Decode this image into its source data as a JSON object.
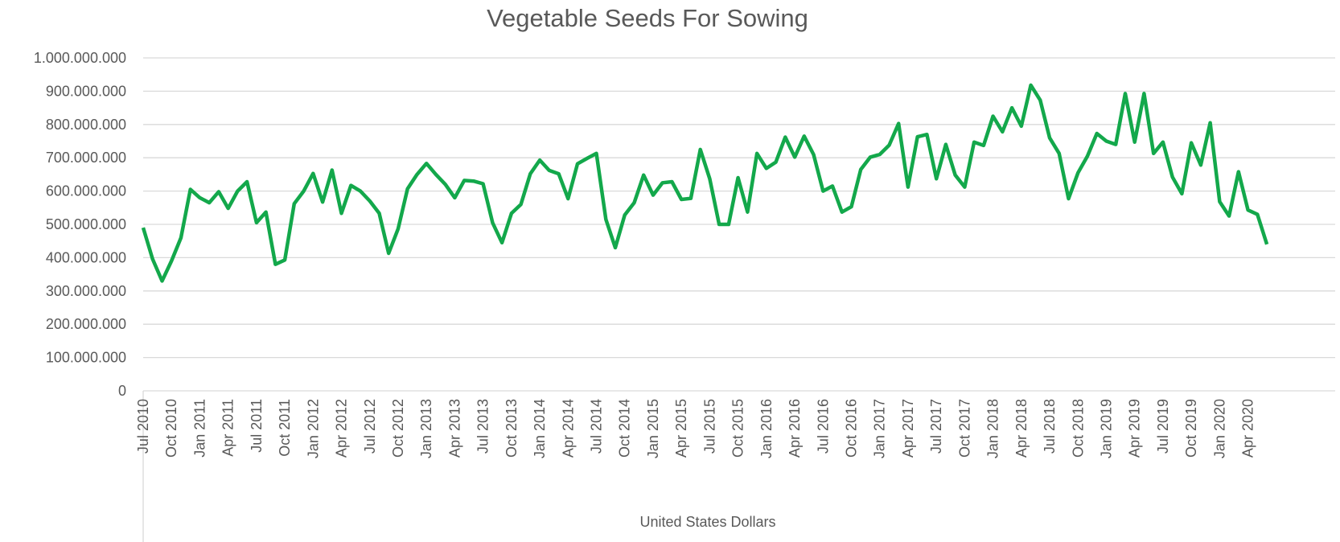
{
  "chart_data": {
    "type": "line",
    "title": "Vegetable Seeds For Sowing",
    "x_label": "United States Dollars",
    "categories": [
      "Jul 2010",
      null,
      null,
      "Oct 2010",
      null,
      null,
      "Jan 2011",
      null,
      null,
      "Apr 2011",
      null,
      null,
      "Jul 2011",
      null,
      null,
      "Oct 2011",
      null,
      null,
      "Jan 2012",
      null,
      null,
      "Apr 2012",
      null,
      null,
      "Jul 2012",
      null,
      null,
      "Oct 2012",
      null,
      null,
      "Jan 2013",
      null,
      null,
      "Apr 2013",
      null,
      null,
      "Jul 2013",
      null,
      null,
      "Oct 2013",
      null,
      null,
      "Jan 2014",
      null,
      null,
      "Apr 2014",
      null,
      null,
      "Jul 2014",
      null,
      null,
      "Oct 2014",
      null,
      null,
      "Jan 2015",
      null,
      null,
      "Apr 2015",
      null,
      null,
      "Jul 2015",
      null,
      null,
      "Oct 2015",
      null,
      null,
      "Jan 2016",
      null,
      null,
      "Apr 2016",
      null,
      null,
      "Jul 2016",
      null,
      null,
      "Oct 2016",
      null,
      null,
      "Jan 2017",
      null,
      null,
      "Apr 2017",
      null,
      null,
      "Jul 2017",
      null,
      null,
      "Oct 2017",
      null,
      null,
      "Jan 2018",
      null,
      null,
      "Apr 2018",
      null,
      null,
      "Jul 2018",
      null,
      null,
      "Oct 2018",
      null,
      null,
      "Jan 2019",
      null,
      null,
      "Apr 2019",
      null,
      null,
      "Jul 2019",
      null,
      null,
      "Oct 2019",
      null,
      null,
      "Jan 2020",
      null,
      null,
      "Apr 2020",
      null,
      null
    ],
    "series": [
      {
        "name": "Vegetable Seeds For Sowing",
        "color": "#13a84b",
        "values": [
          490000000,
          396000000,
          330000000,
          390000000,
          460000000,
          605000000,
          580000000,
          565000000,
          598000000,
          548000000,
          600000000,
          628000000,
          505000000,
          537000000,
          380000000,
          393000000,
          562000000,
          600000000,
          653000000,
          567000000,
          663000000,
          533000000,
          617000000,
          600000000,
          570000000,
          533000000,
          413000000,
          487000000,
          607000000,
          650000000,
          683000000,
          650000000,
          620000000,
          580000000,
          632000000,
          630000000,
          622000000,
          505000000,
          445000000,
          533000000,
          560000000,
          652000000,
          693000000,
          662000000,
          652000000,
          577000000,
          682000000,
          698000000,
          713000000,
          515000000,
          430000000,
          528000000,
          565000000,
          648000000,
          588000000,
          625000000,
          628000000,
          575000000,
          578000000,
          725000000,
          637000000,
          500000000,
          500000000,
          640000000,
          537000000,
          713000000,
          668000000,
          687000000,
          762000000,
          702000000,
          765000000,
          710000000,
          600000000,
          615000000,
          537000000,
          553000000,
          665000000,
          702000000,
          710000000,
          738000000,
          803000000,
          612000000,
          763000000,
          770000000,
          637000000,
          740000000,
          648000000,
          612000000,
          747000000,
          737000000,
          825000000,
          778000000,
          850000000,
          795000000,
          918000000,
          873000000,
          760000000,
          713000000,
          577000000,
          655000000,
          705000000,
          773000000,
          750000000,
          740000000,
          893000000,
          747000000,
          893000000,
          713000000,
          747000000,
          642000000,
          592000000,
          745000000,
          678000000,
          805000000,
          568000000,
          525000000,
          658000000,
          543000000,
          530000000,
          440000000
        ]
      }
    ],
    "ylim": [
      0,
      1000000000
    ],
    "yticks": [
      0,
      {
        "value": 100000000,
        "label": "100.000.000"
      },
      {
        "value": 200000000,
        "label": "200.000.000"
      },
      {
        "value": 300000000,
        "label": "300.000.000"
      },
      {
        "value": 400000000,
        "label": "400.000.000"
      },
      {
        "value": 500000000,
        "label": "500.000.000"
      },
      {
        "value": 600000000,
        "label": "600.000.000"
      },
      {
        "value": 700000000,
        "label": "700.000.000"
      },
      {
        "value": 800000000,
        "label": "800.000.000"
      },
      {
        "value": 900000000,
        "label": "900.000.000"
      },
      {
        "value": 1000000000,
        "label": "1.000.000.000"
      }
    ],
    "grid": true
  }
}
